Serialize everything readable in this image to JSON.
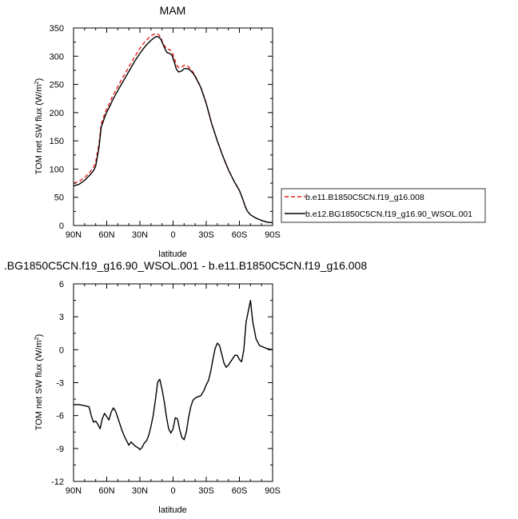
{
  "chart_data": [
    {
      "type": "line",
      "title": "MAM",
      "xlabel": "latitude",
      "ylabel": "TOM net SW flux (W/m",
      "ylabel_sup": "2",
      "ylabel_end": ")",
      "xlim": [
        90,
        -90
      ],
      "ylim": [
        0,
        350
      ],
      "x_ticks": [
        90,
        60,
        30,
        0,
        -30,
        -60,
        -90
      ],
      "x_tick_labels": [
        "90N",
        "60N",
        "30N",
        "0",
        "30S",
        "60S",
        "90S"
      ],
      "y_ticks": [
        0,
        50,
        100,
        150,
        200,
        250,
        300,
        350
      ],
      "y_tick_labels": [
        "0",
        "50",
        "100",
        "150",
        "200",
        "250",
        "300",
        "350"
      ],
      "grid": false,
      "legend_position": "right",
      "series": [
        {
          "name": "b.e11.B1850C5CN.f19_g16.008",
          "color": "#e8221c",
          "dash": "dashed",
          "x": [
            90,
            85,
            80,
            75,
            72,
            70,
            67,
            65,
            62,
            60,
            57,
            55,
            50,
            45,
            40,
            35,
            30,
            25,
            20,
            17,
            15,
            13,
            11,
            10,
            8,
            6,
            5,
            3,
            1,
            -1,
            -3,
            -5,
            -8,
            -10,
            -13,
            -15,
            -18,
            -20,
            -25,
            -30,
            -35,
            -40,
            -45,
            -50,
            -55,
            -60,
            -63,
            -65,
            -67,
            -70,
            -75,
            -80,
            -85,
            -90
          ],
          "y": [
            75,
            78,
            85,
            95,
            103,
            112,
            145,
            180,
            197,
            207,
            218,
            228,
            246,
            264,
            281,
            298,
            314,
            327,
            336,
            339,
            340,
            338,
            333,
            327,
            319,
            314,
            312,
            312,
            308,
            297,
            285,
            280,
            281,
            284,
            283,
            279,
            272,
            265,
            246,
            217,
            180,
            150,
            123,
            99,
            79,
            62,
            47,
            35,
            26,
            19,
            13,
            9,
            6,
            5
          ]
        },
        {
          "name": "b.e12.BG1850C5CN.f19_g16.90_WSOL.001",
          "color": "#000000",
          "dash": "solid",
          "x": [
            90,
            85,
            80,
            75,
            72,
            70,
            67,
            65,
            62,
            60,
            57,
            55,
            50,
            45,
            40,
            35,
            30,
            25,
            20,
            17,
            15,
            13,
            11,
            10,
            8,
            6,
            5,
            3,
            1,
            -1,
            -3,
            -5,
            -8,
            -10,
            -13,
            -15,
            -18,
            -20,
            -25,
            -30,
            -35,
            -40,
            -45,
            -50,
            -55,
            -60,
            -63,
            -65,
            -67,
            -70,
            -75,
            -80,
            -85,
            -90
          ],
          "y": [
            70,
            73,
            80,
            90,
            97,
            105,
            138,
            174,
            191,
            201,
            212,
            221,
            239,
            256,
            273,
            290,
            305,
            318,
            328,
            333,
            335,
            334,
            330,
            325,
            316,
            308,
            306,
            305,
            302,
            290,
            277,
            272,
            274,
            278,
            278,
            276,
            270,
            264,
            245,
            216,
            180,
            150,
            123,
            99,
            79,
            62,
            47,
            35,
            26,
            19,
            13,
            9,
            6,
            5
          ]
        }
      ]
    },
    {
      "type": "line",
      "title": ".BG1850C5CN.f19_g16.90_WSOL.001 - b.e11.B1850C5CN.f19_g16.008",
      "xlabel": "latitude",
      "ylabel": "TOM net SW flux (W/m",
      "ylabel_sup": "2",
      "ylabel_end": ")",
      "xlim": [
        90,
        -90
      ],
      "ylim": [
        -12,
        6
      ],
      "x_ticks": [
        90,
        60,
        30,
        0,
        -30,
        -60,
        -90
      ],
      "x_tick_labels": [
        "90N",
        "60N",
        "30N",
        "0",
        "30S",
        "60S",
        "90S"
      ],
      "y_ticks": [
        -12,
        -9,
        -6,
        -3,
        0,
        3,
        6
      ],
      "y_tick_labels": [
        "-12",
        "-9",
        "-6",
        "-3",
        "0",
        "3",
        "6"
      ],
      "grid": false,
      "series": [
        {
          "color": "#000000",
          "dash": "solid",
          "x": [
            90,
            85,
            80,
            76,
            74,
            72,
            70,
            68,
            66,
            64,
            62,
            60,
            58,
            56,
            54,
            52,
            50,
            48,
            46,
            44,
            42,
            40,
            38,
            36,
            34,
            32,
            30,
            28,
            26,
            24,
            22,
            20,
            18,
            16,
            14,
            13,
            12,
            10,
            8,
            6,
            4,
            2,
            0,
            -2,
            -4,
            -6,
            -8,
            -10,
            -12,
            -14,
            -16,
            -18,
            -20,
            -22,
            -25,
            -28,
            -30,
            -32,
            -34,
            -36,
            -38,
            -40,
            -42,
            -44,
            -46,
            -48,
            -50,
            -52,
            -54,
            -56,
            -58,
            -60,
            -62,
            -64,
            -66,
            -68,
            -70,
            -72,
            -75,
            -78,
            -80,
            -85,
            -90
          ],
          "y": [
            -5.0,
            -5.0,
            -5.1,
            -5.2,
            -6.0,
            -6.6,
            -6.5,
            -6.8,
            -7.2,
            -6.3,
            -5.8,
            -6.1,
            -6.4,
            -5.7,
            -5.3,
            -5.6,
            -6.2,
            -6.8,
            -7.4,
            -7.9,
            -8.3,
            -8.7,
            -8.4,
            -8.6,
            -8.8,
            -8.9,
            -9.1,
            -8.9,
            -8.5,
            -8.3,
            -7.8,
            -7.0,
            -6.0,
            -4.6,
            -3.0,
            -2.8,
            -2.7,
            -3.6,
            -4.7,
            -6.1,
            -7.2,
            -7.6,
            -7.2,
            -6.2,
            -6.3,
            -7.3,
            -8.0,
            -8.2,
            -7.5,
            -6.2,
            -5.2,
            -4.6,
            -4.4,
            -4.3,
            -4.2,
            -3.7,
            -3.2,
            -2.8,
            -2.0,
            -0.9,
            0.1,
            0.6,
            0.4,
            -0.4,
            -1.2,
            -1.6,
            -1.4,
            -1.1,
            -0.8,
            -0.5,
            -0.5,
            -0.9,
            -1.1,
            0.0,
            2.5,
            3.5,
            4.5,
            2.6,
            1.0,
            0.4,
            0.3,
            0.1,
            0.0
          ]
        }
      ]
    }
  ]
}
